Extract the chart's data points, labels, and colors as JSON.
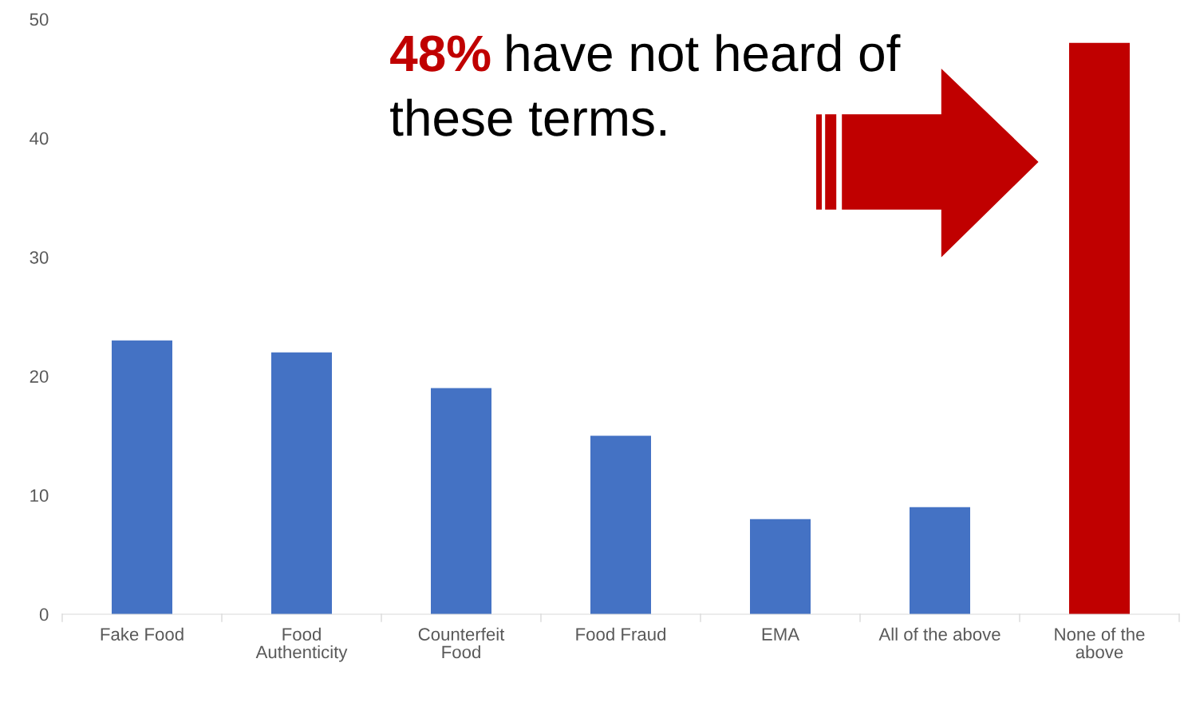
{
  "chart_data": {
    "type": "bar",
    "categories": [
      "Fake Food",
      "Food Authenticity",
      "Counterfeit Food",
      "Food Fraud",
      "EMA",
      "All of the above",
      "None of the above"
    ],
    "values": [
      23,
      22,
      19,
      15,
      8,
      9,
      48
    ],
    "colors": [
      "#4472c4",
      "#4472c4",
      "#4472c4",
      "#4472c4",
      "#4472c4",
      "#4472c4",
      "#c00000"
    ],
    "ylim": [
      0,
      50
    ],
    "yticks": [
      0,
      10,
      20,
      30,
      40,
      50
    ],
    "grid": false,
    "annotations": [
      "48%",
      "have not heard of these terms."
    ]
  }
}
